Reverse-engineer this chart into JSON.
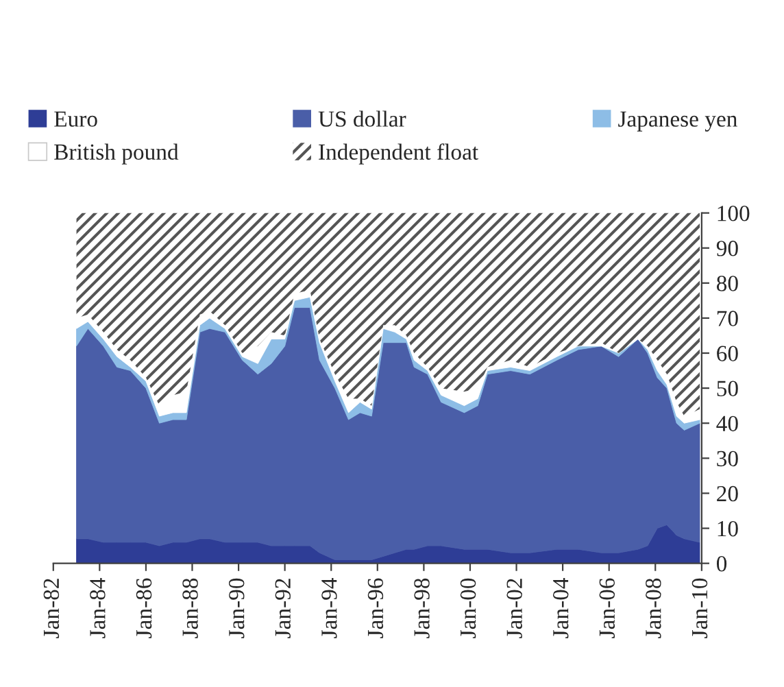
{
  "chart_data": {
    "type": "area",
    "stacked": true,
    "x": [
      "1983-01",
      "1983-07",
      "1984-03",
      "1984-10",
      "1985-05",
      "1986-01",
      "1986-08",
      "1987-03",
      "1987-10",
      "1988-05",
      "1988-10",
      "1989-06",
      "1990-03",
      "1990-11",
      "1991-06",
      "1992-01",
      "1992-06",
      "1993-02",
      "1993-07",
      "1994-03",
      "1994-10",
      "1995-04",
      "1995-10",
      "1996-04",
      "1996-10",
      "1997-04",
      "1997-08",
      "1998-03",
      "1998-10",
      "1999-10",
      "2000-05",
      "2000-10",
      "2001-10",
      "2002-08",
      "2003-10",
      "2004-09",
      "2005-09",
      "2006-06",
      "2007-04",
      "2007-09",
      "2008-02",
      "2008-07",
      "2008-12",
      "2009-04",
      "2009-12"
    ],
    "series": [
      {
        "name": "Euro",
        "color": "#2e3d96",
        "values": [
          7,
          7,
          6,
          6,
          6,
          6,
          5,
          6,
          6,
          7,
          7,
          6,
          6,
          6,
          5,
          5,
          5,
          5,
          3,
          1,
          1,
          1,
          1,
          2,
          3,
          4,
          4,
          5,
          5,
          4,
          4,
          4,
          3,
          3,
          4,
          4,
          3,
          3,
          4,
          5,
          10,
          11,
          8,
          7,
          6
        ]
      },
      {
        "name": "US dollar",
        "color": "#4a5ea8",
        "values": [
          55,
          60,
          56,
          50,
          49,
          44,
          35,
          35,
          35,
          59,
          60,
          60,
          52,
          48,
          52,
          57,
          68,
          68,
          55,
          49,
          40,
          42,
          41,
          61,
          60,
          59,
          52,
          49,
          41,
          39,
          41,
          50,
          52,
          51,
          54,
          57,
          59,
          56,
          60,
          55,
          43,
          39,
          32,
          31,
          34
        ]
      },
      {
        "name": "Japanese yen",
        "color": "#8dbde6",
        "values": [
          5,
          2,
          2,
          3,
          1,
          2,
          2,
          2,
          2,
          2,
          3,
          1,
          1,
          3,
          7,
          2,
          2,
          3,
          5,
          2,
          2,
          3,
          2,
          4,
          3,
          1,
          2,
          1,
          2,
          2,
          2,
          1,
          1,
          1,
          1,
          1,
          0,
          1,
          0,
          1,
          2,
          1,
          2,
          2,
          1
        ]
      },
      {
        "name": "British pound",
        "color": "#ffffff",
        "values": [
          3,
          2,
          2,
          2,
          2,
          1,
          3,
          5,
          6,
          3,
          2,
          1,
          1,
          5,
          2,
          1,
          2,
          2,
          1,
          2,
          4,
          1,
          1,
          1,
          2,
          1,
          2,
          1,
          2,
          4,
          3,
          1,
          2,
          1,
          1,
          0,
          1,
          0,
          0,
          1,
          3,
          3,
          4,
          2,
          3
        ]
      },
      {
        "name": "Independent float",
        "color": "#555555",
        "values": [
          30,
          29,
          34,
          39,
          42,
          47,
          55,
          52,
          51,
          29,
          28,
          32,
          40,
          38,
          34,
          35,
          23,
          22,
          36,
          46,
          53,
          53,
          55,
          32,
          32,
          35,
          40,
          44,
          50,
          51,
          50,
          44,
          42,
          44,
          40,
          38,
          37,
          40,
          36,
          38,
          42,
          46,
          54,
          58,
          56
        ]
      }
    ],
    "xlim": [
      "1982-01",
      "2010-01"
    ],
    "xticks": [
      {
        "value": "1982-01",
        "label": "Jan-82"
      },
      {
        "value": "1984-01",
        "label": "Jan-84"
      },
      {
        "value": "1986-01",
        "label": "Jan-86"
      },
      {
        "value": "1988-01",
        "label": "Jan-88"
      },
      {
        "value": "1990-01",
        "label": "Jan-90"
      },
      {
        "value": "1992-01",
        "label": "Jan-92"
      },
      {
        "value": "1994-01",
        "label": "Jan-94"
      },
      {
        "value": "1996-01",
        "label": "Jan-96"
      },
      {
        "value": "1998-01",
        "label": "Jan-98"
      },
      {
        "value": "2000-01",
        "label": "Jan-00"
      },
      {
        "value": "2002-01",
        "label": "Jan-02"
      },
      {
        "value": "2004-01",
        "label": "Jan-04"
      },
      {
        "value": "2006-01",
        "label": "Jan-06"
      },
      {
        "value": "2008-01",
        "label": "Jan-08"
      },
      {
        "value": "2010-01",
        "label": "Jan-10"
      }
    ],
    "ylim": [
      0,
      100
    ],
    "yticks": [
      0,
      10,
      20,
      30,
      40,
      50,
      60,
      70,
      80,
      90,
      100
    ],
    "legend": "top"
  }
}
